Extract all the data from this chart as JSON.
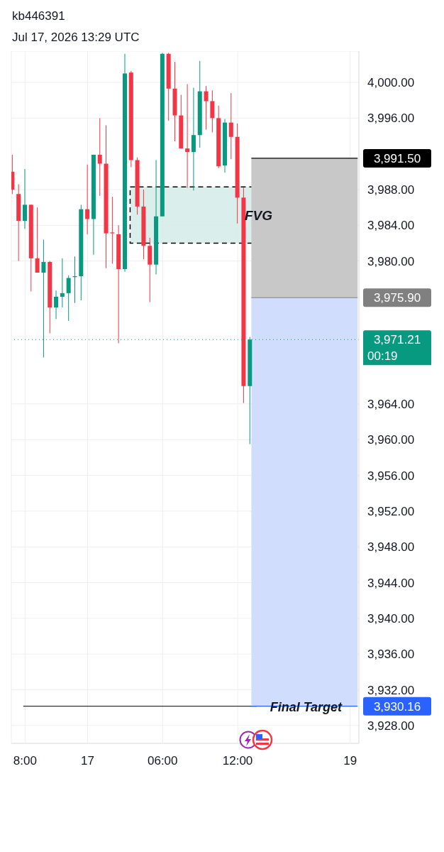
{
  "chart_data": {
    "type": "candlestick",
    "title": "kb446391",
    "subtitle": "Jul 17, 2026 13:29 UTC",
    "categories": [
      null,
      null,
      "8:00",
      null,
      null,
      null,
      null,
      null,
      null,
      null,
      null,
      null,
      "17",
      null,
      null,
      null,
      null,
      null,
      null,
      null,
      null,
      null,
      null,
      null,
      "06:00",
      null,
      null,
      null,
      null,
      null,
      null,
      null,
      null,
      null,
      null,
      null,
      "12:00",
      null,
      null,
      null,
      null,
      null,
      null,
      null,
      null,
      null,
      null,
      null,
      null,
      null,
      null,
      null,
      null,
      null,
      "19",
      null
    ],
    "ohlc": [
      [
        3990.0,
        3991.9,
        3987.5,
        3988.0
      ],
      [
        3987.5,
        3988.6,
        3980.0,
        3984.5
      ],
      [
        3984.5,
        3990.3,
        3983.6,
        3986.3
      ],
      [
        3986.3,
        3986.3,
        3976.6,
        3980.3
      ],
      [
        3980.3,
        3986.0,
        3978.7,
        3978.7
      ],
      [
        3978.7,
        3982.4,
        3969.2,
        3979.9
      ],
      [
        3979.9,
        3980.0,
        3971.9,
        3974.8
      ],
      [
        3974.8,
        3976.7,
        3973.5,
        3976.0
      ],
      [
        3976.0,
        3980.3,
        3974.8,
        3976.4
      ],
      [
        3976.4,
        3978.4,
        3973.3,
        3978.1
      ],
      [
        3978.2,
        3980.5,
        3975.3,
        3978.3
      ],
      [
        3978.3,
        3986.3,
        3975.6,
        3985.8
      ],
      [
        3985.8,
        3990.8,
        3983.0,
        3984.7
      ],
      [
        3984.7,
        3991.9,
        3980.7,
        3991.9
      ],
      [
        3991.9,
        3996.0,
        3987.3,
        3990.9
      ],
      [
        3990.9,
        3995.2,
        3979.2,
        3983.1
      ],
      [
        3983.2,
        3987.2,
        3979.7,
        3983.1
      ],
      [
        3983.0,
        3984.0,
        3970.8,
        3979.1
      ],
      [
        3979.1,
        4003.2,
        3978.8,
        4001.0
      ],
      [
        4001.1,
        4001.3,
        3990.5,
        3991.3
      ],
      [
        3991.3,
        3991.6,
        3985.2,
        3986.1
      ],
      [
        3986.1,
        3988.0,
        3980.2,
        3981.7
      ],
      [
        3981.7,
        3982.6,
        3975.4,
        3979.6
      ],
      [
        3979.6,
        3991.3,
        3978.5,
        3985.0
      ],
      [
        3985.0,
        4003.3,
        3985.0,
        4003.2
      ],
      [
        4003.2,
        4003.3,
        3995.7,
        3999.3
      ],
      [
        3999.3,
        4002.3,
        3993.4,
        3996.3
      ],
      [
        3996.3,
        3998.6,
        3992.6,
        3992.6
      ],
      [
        3992.6,
        3999.8,
        3988.2,
        3992.2
      ],
      [
        3992.2,
        3999.4,
        3987.9,
        3994.1
      ],
      [
        3994.1,
        4002.4,
        3992.7,
        3999.0
      ],
      [
        3999.0,
        3999.6,
        3994.7,
        3997.9
      ],
      [
        3997.9,
        3999.1,
        3994.4,
        3996.0
      ],
      [
        3996.0,
        3997.4,
        3990.4,
        3990.6
      ],
      [
        3990.7,
        3995.9,
        3989.9,
        3995.5
      ],
      [
        3995.5,
        3998.8,
        3991.4,
        3993.9
      ],
      [
        3993.9,
        3995.4,
        3984.2,
        3987.1
      ],
      [
        3987.1,
        3988.2,
        3964.1,
        3966.0
      ],
      [
        3966.0,
        3971.5,
        3959.5,
        3971.21
      ],
      null,
      null,
      null,
      null,
      null,
      null,
      null,
      null,
      null,
      null,
      null,
      null,
      null,
      null,
      null,
      null,
      null
    ],
    "colors": [
      "#f23645",
      "#f23645",
      "#089981",
      "#f23645",
      "#f23645",
      "#089981",
      "#f23645",
      "#089981",
      "#089981",
      "#089981",
      "#089981",
      "#089981",
      "#f23645",
      "#089981",
      "#f23645",
      "#f23645",
      "#f23645",
      "#f23645",
      "#089981",
      "#f23645",
      "#f23645",
      "#f23645",
      "#f23645",
      "#089981",
      "#089981",
      "#f23645",
      "#f23645",
      "#f23645",
      "#f23645",
      "#089981",
      "#089981",
      "#f23645",
      "#f23645",
      "#f23645",
      "#089981",
      "#f23645",
      "#f23645",
      "#f23645",
      "#089981",
      null,
      null,
      null,
      null,
      null,
      null,
      null,
      null,
      null,
      null,
      null,
      null,
      null,
      null,
      null,
      null,
      null
    ],
    "ylim": [
      3926.0,
      4003.5
    ],
    "yticks": [
      {
        "value": 3928,
        "label": "3,928.00"
      },
      {
        "value": 3932,
        "label": "3,932.00"
      },
      {
        "value": 3936,
        "label": "3,936.00"
      },
      {
        "value": 3940,
        "label": "3,940.00"
      },
      {
        "value": 3944,
        "label": "3,944.00"
      },
      {
        "value": 3948,
        "label": "3,948.00"
      },
      {
        "value": 3952,
        "label": "3,952.00"
      },
      {
        "value": 3956,
        "label": "3,956.00"
      },
      {
        "value": 3960,
        "label": "3,960.00"
      },
      {
        "value": 3964,
        "label": "3,964.00"
      },
      {
        "value": 3980,
        "label": "3,980.00"
      },
      {
        "value": 3984,
        "label": "3,984.00"
      },
      {
        "value": 3988,
        "label": "3,988.00"
      },
      {
        "value": 3996,
        "label": "3,996.00"
      },
      {
        "value": 4000,
        "label": "4,000.00"
      }
    ],
    "grid": true,
    "bands": [
      {
        "axis": "y",
        "from": 3982.0,
        "to": 3988.3,
        "label": "FVG",
        "color": "#d3ebe7"
      },
      {
        "axis": "y",
        "from": 3975.9,
        "to": 3991.5,
        "color": "#c8c8c8"
      },
      {
        "axis": "y",
        "from": 3930.16,
        "to": 3975.9,
        "color": "#d0ddfc"
      }
    ],
    "ref_lines": [
      {
        "axis": "y",
        "value": 3991.5,
        "label": "3,991.50",
        "color": "#000000"
      },
      {
        "axis": "y",
        "value": 3975.9,
        "label": "3,975.90",
        "color": "#808080"
      },
      {
        "axis": "y",
        "value": 3971.21,
        "label": "3,971.21",
        "color": "#089981",
        "line_style": "dotted"
      },
      {
        "axis": "y",
        "value": 3930.16,
        "label": "Final Target",
        "color": "#333333"
      },
      {
        "axis": "y",
        "value": 3930.16,
        "label": "3,930.16",
        "color": "#2962ff"
      }
    ],
    "annotations": [
      "00:19"
    ]
  }
}
